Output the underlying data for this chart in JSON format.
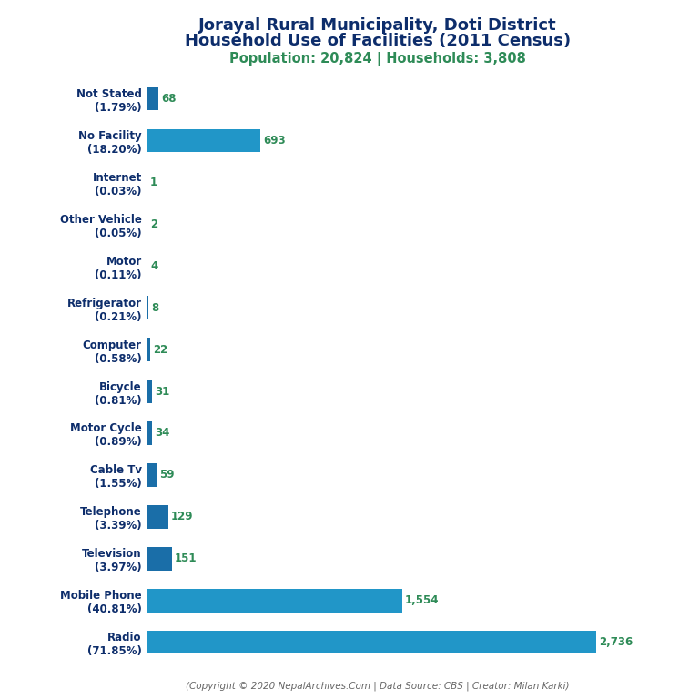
{
  "title_line1": "Jorayal Rural Municipality, Doti District",
  "title_line2": "Household Use of Facilities (2011 Census)",
  "subtitle": "Population: 20,824 | Households: 3,808",
  "footer": "(Copyright © 2020 NepalArchives.Com | Data Source: CBS | Creator: Milan Karki)",
  "categories": [
    "Radio\n(71.85%)",
    "Mobile Phone\n(40.81%)",
    "Television\n(3.97%)",
    "Telephone\n(3.39%)",
    "Cable Tv\n(1.55%)",
    "Motor Cycle\n(0.89%)",
    "Bicycle\n(0.81%)",
    "Computer\n(0.58%)",
    "Refrigerator\n(0.21%)",
    "Motor\n(0.11%)",
    "Other Vehicle\n(0.05%)",
    "Internet\n(0.03%)",
    "No Facility\n(18.20%)",
    "Not Stated\n(1.79%)"
  ],
  "values": [
    2736,
    1554,
    151,
    129,
    59,
    34,
    31,
    22,
    8,
    4,
    2,
    1,
    693,
    68
  ],
  "bar_color_light": "#2196c8",
  "bar_color_dark": "#1a6ea8",
  "title_color": "#0d2d6b",
  "subtitle_color": "#2e8b57",
  "value_color": "#2e8b57",
  "footer_color": "#666666",
  "background_color": "#ffffff",
  "label_color": "#0d2d6b"
}
